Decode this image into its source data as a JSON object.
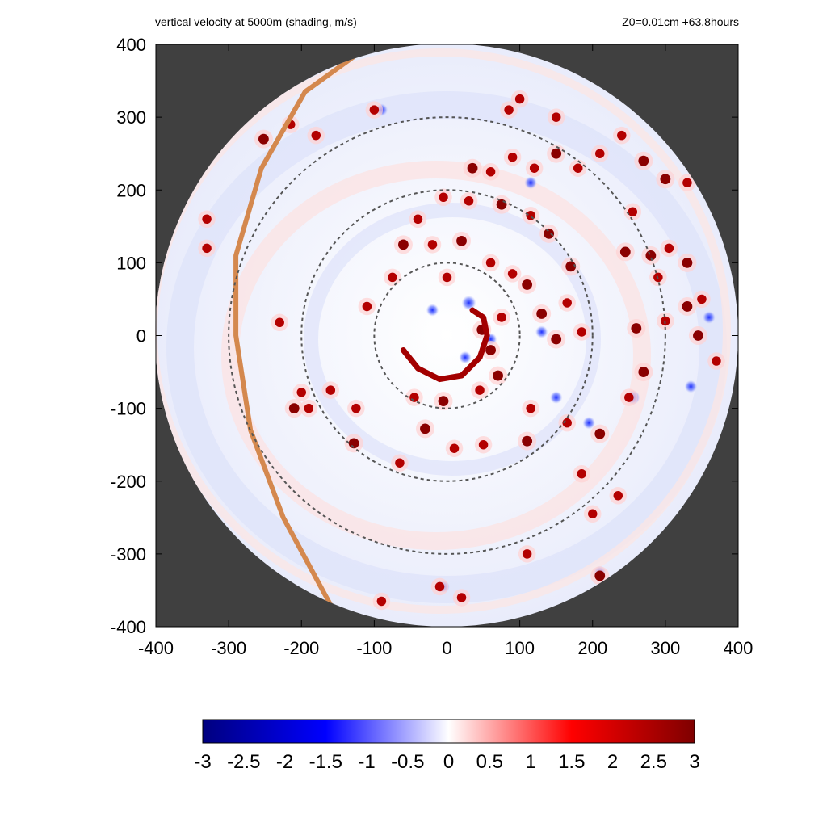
{
  "titles": {
    "left": "vertical velocity at 5000m (shading, m/s)",
    "right": "Z0=0.01cm  +63.8hours"
  },
  "chart_data": {
    "type": "heatmap",
    "title": "vertical velocity at 5000m (shading, m/s)",
    "annotation": "Z0=0.01cm  +63.8hours",
    "xlabel": "",
    "ylabel": "",
    "xlim": [
      -400,
      400
    ],
    "ylim": [
      -400,
      400
    ],
    "x_ticks": [
      -400,
      -300,
      -200,
      -100,
      0,
      100,
      200,
      300,
      400
    ],
    "y_ticks": [
      -400,
      -300,
      -200,
      -100,
      0,
      100,
      200,
      300,
      400
    ],
    "x_tick_labels": [
      "-400",
      "-300",
      "-200",
      "-100",
      "0",
      "100",
      "200",
      "300",
      "400"
    ],
    "y_tick_labels": [
      "-400",
      "-300",
      "-200",
      "-100",
      "0",
      "100",
      "200",
      "300",
      "400"
    ],
    "domain_radius": 400,
    "outside_domain_color": "#404040",
    "range_circles": [
      100,
      200,
      300
    ],
    "colorbar": {
      "min": -3,
      "max": 3,
      "ticks": [
        -3,
        -2.5,
        -2,
        -1.5,
        -1,
        -0.5,
        0,
        0.5,
        1,
        1.5,
        2,
        2.5,
        3
      ],
      "tick_labels": [
        "-3",
        "-2.5",
        "-2",
        "-1.5",
        "-1",
        "-0.5",
        "0",
        "0.5",
        "1",
        "1.5",
        "2",
        "2.5",
        "3"
      ],
      "colors": [
        "#00007f",
        "#0000ff",
        "#ffffff",
        "#ff0000",
        "#7f0000"
      ]
    },
    "orange_track": {
      "color": "#d4884e",
      "points": [
        [
          -105,
          400
        ],
        [
          -195,
          335
        ],
        [
          -255,
          230
        ],
        [
          -290,
          110
        ],
        [
          -290,
          0
        ],
        [
          -270,
          -130
        ],
        [
          -225,
          -250
        ],
        [
          -160,
          -370
        ]
      ]
    },
    "eyewall_band": {
      "value": 3,
      "points": [
        [
          -60,
          -20
        ],
        [
          -40,
          -45
        ],
        [
          -10,
          -60
        ],
        [
          20,
          -55
        ],
        [
          45,
          -30
        ],
        [
          55,
          0
        ],
        [
          50,
          25
        ],
        [
          35,
          35
        ]
      ]
    },
    "convective_cells": [
      {
        "x": 48,
        "y": 8,
        "w": 3
      },
      {
        "x": 60,
        "y": -20,
        "w": 3
      },
      {
        "x": 70,
        "y": -55,
        "w": 3
      },
      {
        "x": 75,
        "y": 25,
        "w": 2.5
      },
      {
        "x": -45,
        "y": -85,
        "w": 2.5
      },
      {
        "x": -5,
        "y": -90,
        "w": 3
      },
      {
        "x": 45,
        "y": -75,
        "w": 2.5
      },
      {
        "x": 90,
        "y": 85,
        "w": 2.5
      },
      {
        "x": 110,
        "y": 70,
        "w": 3
      },
      {
        "x": 130,
        "y": 30,
        "w": 3
      },
      {
        "x": 150,
        "y": -5,
        "w": 3
      },
      {
        "x": 185,
        "y": 5,
        "w": 2.5
      },
      {
        "x": 165,
        "y": 45,
        "w": 2.5
      },
      {
        "x": 170,
        "y": 95,
        "w": 3
      },
      {
        "x": 140,
        "y": 140,
        "w": 3
      },
      {
        "x": 115,
        "y": 165,
        "w": 2.5
      },
      {
        "x": 75,
        "y": 180,
        "w": 3
      },
      {
        "x": 30,
        "y": 185,
        "w": 2.5
      },
      {
        "x": -5,
        "y": 190,
        "w": 2.5
      },
      {
        "x": -40,
        "y": 160,
        "w": 2.5
      },
      {
        "x": -60,
        "y": 125,
        "w": 3
      },
      {
        "x": -20,
        "y": 125,
        "w": 2.5
      },
      {
        "x": 20,
        "y": 130,
        "w": 3
      },
      {
        "x": -75,
        "y": 80,
        "w": 2.5
      },
      {
        "x": -210,
        "y": -100,
        "w": 3
      },
      {
        "x": -160,
        "y": -75,
        "w": 2.5
      },
      {
        "x": -128,
        "y": -148,
        "w": 3
      },
      {
        "x": -30,
        "y": -128,
        "w": 3
      },
      {
        "x": 10,
        "y": -155,
        "w": 2.5
      },
      {
        "x": 50,
        "y": -150,
        "w": 2.5
      },
      {
        "x": 110,
        "y": -145,
        "w": 3
      },
      {
        "x": 115,
        "y": -100,
        "w": 2.5
      },
      {
        "x": 165,
        "y": -120,
        "w": 2.5
      },
      {
        "x": 185,
        "y": -190,
        "w": 2.5
      },
      {
        "x": 210,
        "y": -135,
        "w": 3
      },
      {
        "x": 200,
        "y": -245,
        "w": 2.5
      },
      {
        "x": 210,
        "y": -330,
        "w": 3
      },
      {
        "x": 235,
        "y": -220,
        "w": 2.5
      },
      {
        "x": 250,
        "y": -85,
        "w": 2.5
      },
      {
        "x": 260,
        "y": 10,
        "w": 3
      },
      {
        "x": 270,
        "y": -50,
        "w": 3
      },
      {
        "x": 290,
        "y": 80,
        "w": 2.5
      },
      {
        "x": 300,
        "y": 20,
        "w": 2.5
      },
      {
        "x": 330,
        "y": 40,
        "w": 3
      },
      {
        "x": 345,
        "y": 0,
        "w": 3
      },
      {
        "x": 370,
        "y": -35,
        "w": 2.5
      },
      {
        "x": 255,
        "y": 170,
        "w": 2.5
      },
      {
        "x": 280,
        "y": 110,
        "w": 3
      },
      {
        "x": 245,
        "y": 115,
        "w": 3
      },
      {
        "x": 305,
        "y": 120,
        "w": 2.5
      },
      {
        "x": 330,
        "y": 100,
        "w": 3
      },
      {
        "x": 350,
        "y": 50,
        "w": 2.5
      },
      {
        "x": 270,
        "y": 240,
        "w": 3
      },
      {
        "x": 300,
        "y": 215,
        "w": 3
      },
      {
        "x": 330,
        "y": 210,
        "w": 2.5
      },
      {
        "x": 240,
        "y": 275,
        "w": 2.5
      },
      {
        "x": 210,
        "y": 250,
        "w": 2.5
      },
      {
        "x": 180,
        "y": 230,
        "w": 2.5
      },
      {
        "x": 150,
        "y": 250,
        "w": 3
      },
      {
        "x": 120,
        "y": 230,
        "w": 2.5
      },
      {
        "x": 90,
        "y": 245,
        "w": 2.5
      },
      {
        "x": 60,
        "y": 225,
        "w": 2.5
      },
      {
        "x": 35,
        "y": 230,
        "w": 3
      },
      {
        "x": 85,
        "y": 310,
        "w": 2.5
      },
      {
        "x": 100,
        "y": 325,
        "w": 2.5
      },
      {
        "x": 150,
        "y": 300,
        "w": 2.5
      },
      {
        "x": -252,
        "y": 270,
        "w": 3
      },
      {
        "x": -215,
        "y": 290,
        "w": 2.5
      },
      {
        "x": -180,
        "y": 275,
        "w": 2.5
      },
      {
        "x": -100,
        "y": 310,
        "w": 2.5
      },
      {
        "x": -330,
        "y": 160,
        "w": 2.5
      },
      {
        "x": -330,
        "y": 120,
        "w": 2.5
      },
      {
        "x": -230,
        "y": 18,
        "w": 2.5
      },
      {
        "x": -200,
        "y": -78,
        "w": 2.5
      },
      {
        "x": -190,
        "y": -100,
        "w": 2.5
      },
      {
        "x": -125,
        "y": -100,
        "w": 2.5
      },
      {
        "x": -65,
        "y": -175,
        "w": 2.5
      },
      {
        "x": -10,
        "y": -345,
        "w": 2.5
      },
      {
        "x": -90,
        "y": -365,
        "w": 2.5
      },
      {
        "x": 20,
        "y": -360,
        "w": 2.5
      },
      {
        "x": 110,
        "y": -300,
        "w": 2.5
      },
      {
        "x": 0,
        "y": 80,
        "w": 2.5
      },
      {
        "x": 60,
        "y": 100,
        "w": 2.5
      },
      {
        "x": -110,
        "y": 40,
        "w": 2.5
      }
    ],
    "downdraft_cells": [
      {
        "x": 30,
        "y": 45,
        "w": -2
      },
      {
        "x": -20,
        "y": 35,
        "w": -1.5
      },
      {
        "x": 60,
        "y": -5,
        "w": -1.5
      },
      {
        "x": 25,
        "y": -30,
        "w": -1.5
      },
      {
        "x": -90,
        "y": 310,
        "w": -1.5
      },
      {
        "x": 150,
        "y": -85,
        "w": -1.5
      },
      {
        "x": 255,
        "y": -85,
        "w": -2
      },
      {
        "x": 360,
        "y": 25,
        "w": -1.5
      },
      {
        "x": 195,
        "y": -120,
        "w": -1.5
      },
      {
        "x": 130,
        "y": 5,
        "w": -1.5
      },
      {
        "x": -5,
        "y": -345,
        "w": -1.5
      },
      {
        "x": 210,
        "y": -325,
        "w": -1.5
      },
      {
        "x": 115,
        "y": 210,
        "w": -1.5
      },
      {
        "x": 335,
        "y": -70,
        "w": -1.5
      }
    ]
  }
}
